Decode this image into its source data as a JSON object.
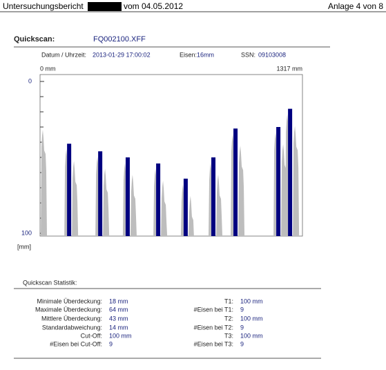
{
  "header": {
    "title_prefix": "Untersuchungsbericht",
    "title_suffix": "vom 04.05.2012",
    "page": "Anlage 4 von 8"
  },
  "quickscan": {
    "label": "Quickscan:",
    "file": "FQ002100.XFF",
    "date_label": "Datum / Uhrzeit:",
    "date": "2013-01-29 17:00:02",
    "iron_label": "Eisen:",
    "iron": "16mm",
    "ssn_label": "SSN:",
    "ssn": "09103008"
  },
  "chart_data": {
    "type": "bar",
    "x_start_label": "0 mm",
    "x_end_label": "1317 mm",
    "y_unit": "[mm]",
    "xlim": [
      0,
      1317
    ],
    "ylim": [
      0,
      100
    ],
    "yticks": [
      0,
      100
    ],
    "minor_yticks": [
      10,
      20,
      30,
      40,
      50,
      60,
      70,
      80,
      90
    ],
    "y_inverted": true,
    "x": [
      146,
      302,
      440,
      593,
      731,
      870,
      981,
      1196,
      1255
    ],
    "values": [
      41,
      46,
      50,
      54,
      64,
      50,
      31,
      30,
      18
    ],
    "color": "#000080"
  },
  "statistics": {
    "title": "Quickscan Statistik:",
    "left": [
      [
        "Minimale Überdeckung:",
        "18 mm"
      ],
      [
        "Maximale Überdeckung:",
        "64 mm"
      ],
      [
        "Mittlere Überdeckung:",
        "43 mm"
      ],
      [
        "Standardabweichung:",
        "14 mm"
      ],
      [
        "Cut-Off:",
        "100 mm"
      ],
      [
        "#Eisen bei Cut-Off:",
        "9"
      ]
    ],
    "right": [
      [
        "T1:",
        "100 mm"
      ],
      [
        "#Eisen bei T1:",
        "9"
      ],
      [
        "T2:",
        "100 mm"
      ],
      [
        "#Eisen bei T2:",
        "9"
      ],
      [
        "T3:",
        "100 mm"
      ],
      [
        "#Eisen bei T3:",
        "9"
      ]
    ]
  }
}
